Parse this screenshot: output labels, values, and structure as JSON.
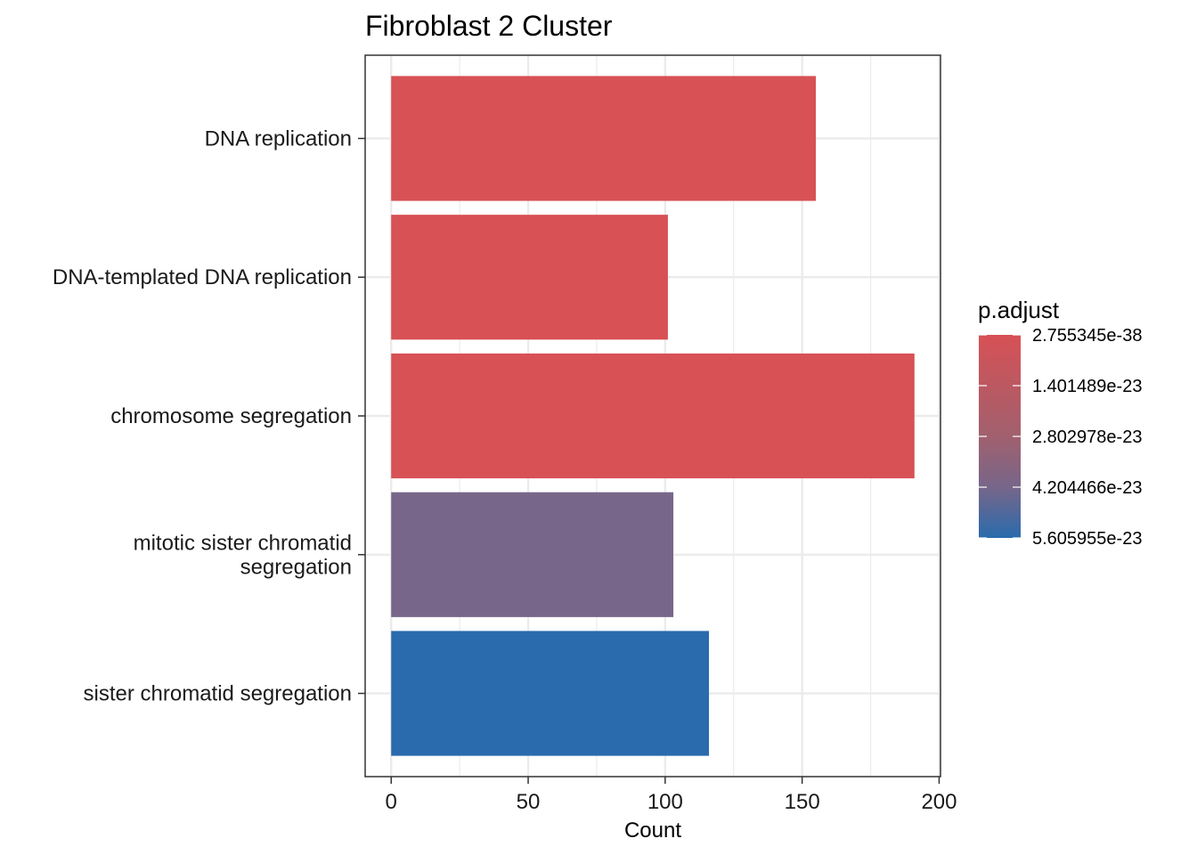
{
  "chart_data": {
    "type": "bar",
    "orientation": "horizontal",
    "title": "Fibroblast 2 Cluster",
    "xlabel": "Count",
    "ylabel": "",
    "xlim": [
      -9.5,
      200.5
    ],
    "xticks": [
      0,
      50,
      100,
      150,
      200
    ],
    "grid": true,
    "categories": [
      "DNA replication",
      "DNA-templated DNA replication",
      "chromosome segregation",
      "mitotic sister chromatid segregation",
      "sister chromatid segregation"
    ],
    "category_display_lines": [
      [
        "DNA replication"
      ],
      [
        "DNA-templated DNA replication"
      ],
      [
        "chromosome segregation"
      ],
      [
        "mitotic sister chromatid",
        "segregation"
      ],
      [
        "sister chromatid segregation"
      ]
    ],
    "values": [
      155,
      101,
      191,
      103,
      116
    ],
    "p_adjust": [
      2.755345e-38,
      2.755345e-38,
      2.755345e-38,
      3.9e-23,
      5.605955e-23
    ],
    "colors": [
      "#d75155",
      "#d75155",
      "#d75155",
      "#776689",
      "#2a6bad"
    ],
    "legend": {
      "title": "p.adjust",
      "placement": "right",
      "labels": [
        "2.755345e-38",
        "1.401489e-23",
        "2.802978e-23",
        "4.204466e-23",
        "5.605955e-23"
      ],
      "color_high": "#d75155",
      "color_low": "#2a6bad"
    }
  }
}
